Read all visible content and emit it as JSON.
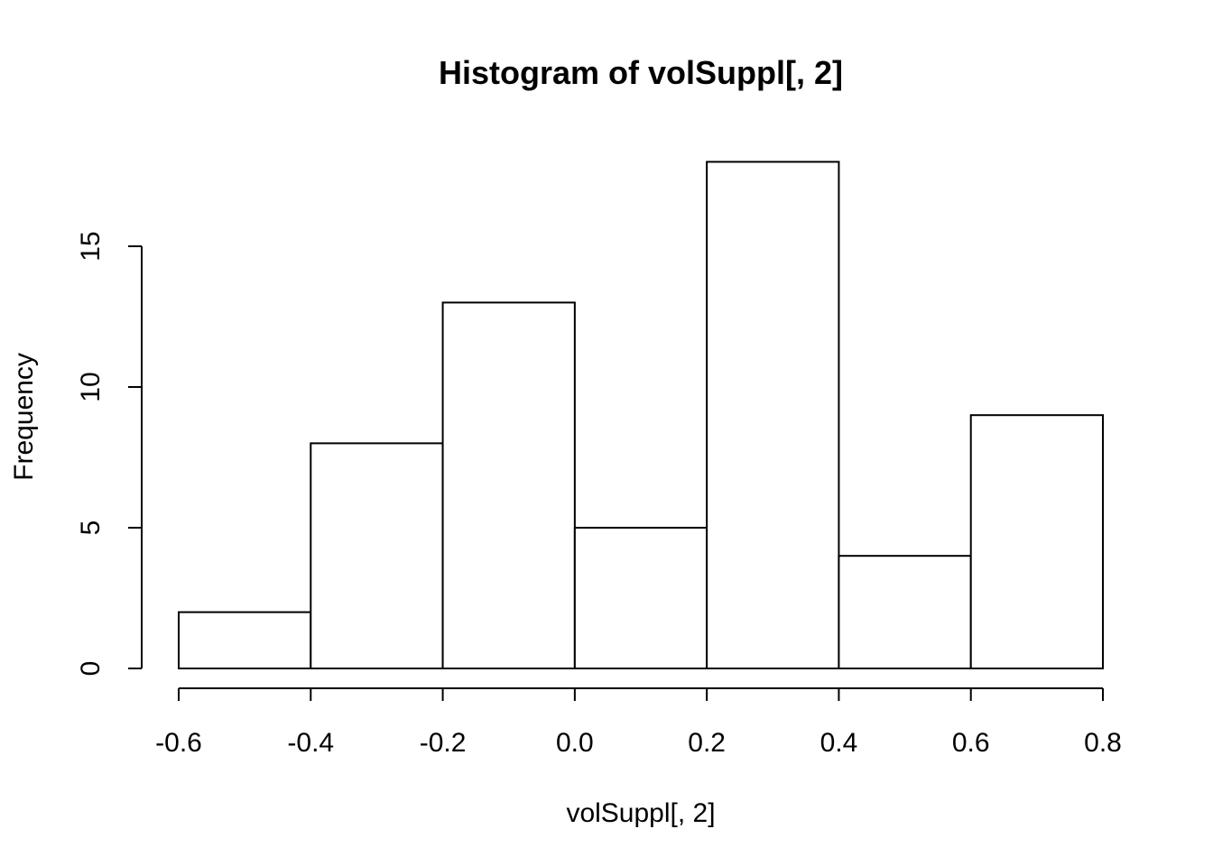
{
  "chart_data": {
    "type": "bar",
    "subtype": "histogram",
    "title": "Histogram of volSuppl[, 2]",
    "xlabel": "volSuppl[, 2]",
    "ylabel": "Frequency",
    "bins": [
      {
        "start": -0.6,
        "end": -0.4,
        "count": 2
      },
      {
        "start": -0.4,
        "end": -0.2,
        "count": 8
      },
      {
        "start": -0.2,
        "end": 0.0,
        "count": 13
      },
      {
        "start": 0.0,
        "end": 0.2,
        "count": 5
      },
      {
        "start": 0.2,
        "end": 0.4,
        "count": 18
      },
      {
        "start": 0.4,
        "end": 0.6,
        "count": 4
      },
      {
        "start": 0.6,
        "end": 0.8,
        "count": 9
      }
    ],
    "xlim": [
      -0.6,
      0.8
    ],
    "ylim": [
      0,
      18
    ],
    "x_ticks": [
      -0.6,
      -0.4,
      -0.2,
      0.0,
      0.2,
      0.4,
      0.6,
      0.8
    ],
    "x_tick_labels": [
      "-0.6",
      "-0.4",
      "-0.2",
      "0.0",
      "0.2",
      "0.4",
      "0.6",
      "0.8"
    ],
    "y_ticks": [
      0,
      5,
      10,
      15
    ],
    "y_tick_labels": [
      "0",
      "5",
      "10",
      "15"
    ],
    "grid": false,
    "bar_fill": "#ffffff",
    "bar_stroke": "#000000"
  }
}
